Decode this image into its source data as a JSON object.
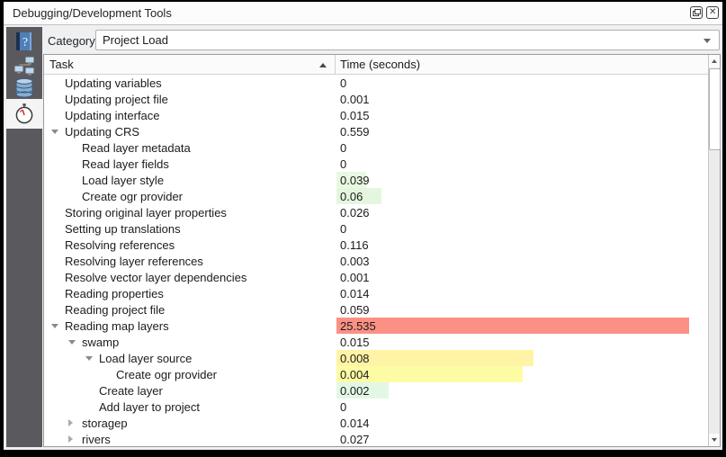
{
  "window": {
    "title": "Debugging/Development Tools",
    "buttons": {
      "float": "float-icon",
      "close": "close-icon"
    }
  },
  "sidebar": {
    "items": [
      {
        "id": "help",
        "icon": "help-book-icon",
        "selected": false
      },
      {
        "id": "network-logger",
        "icon": "network-icon",
        "selected": false
      },
      {
        "id": "query-logger",
        "icon": "database-icon",
        "selected": false
      },
      {
        "id": "profiler",
        "icon": "stopwatch-icon",
        "selected": true
      }
    ]
  },
  "toolbar": {
    "category_label": "Category",
    "category_value": "Project Load"
  },
  "table": {
    "columns": [
      {
        "label": "Task",
        "sort": "ascending"
      },
      {
        "label": "Time (seconds)"
      }
    ],
    "rows": [
      {
        "label": "Updating variables",
        "value": "0",
        "level": 1,
        "expand": "none"
      },
      {
        "label": "Updating project file",
        "value": "0.001",
        "level": 1,
        "expand": "none"
      },
      {
        "label": "Updating interface",
        "value": "0.015",
        "level": 1,
        "expand": "none"
      },
      {
        "label": "Updating CRS",
        "value": "0.559",
        "level": 1,
        "expand": "expanded"
      },
      {
        "label": "Read layer metadata",
        "value": "0",
        "level": 2,
        "expand": "none"
      },
      {
        "label": "Read layer fields",
        "value": "0",
        "level": 2,
        "expand": "none"
      },
      {
        "label": "Load layer style",
        "value": "0.039",
        "level": 2,
        "expand": "none",
        "bar": {
          "color": "#e8f8e2",
          "fraction": 0.08
        }
      },
      {
        "label": "Create ogr provider",
        "value": "0.06",
        "level": 2,
        "expand": "none",
        "bar": {
          "color": "#e4f7de",
          "fraction": 0.12
        }
      },
      {
        "label": "Storing original layer properties",
        "value": "0.026",
        "level": 1,
        "expand": "none"
      },
      {
        "label": "Setting up translations",
        "value": "0",
        "level": 1,
        "expand": "none"
      },
      {
        "label": "Resolving references",
        "value": "0.116",
        "level": 1,
        "expand": "none"
      },
      {
        "label": "Resolving layer references",
        "value": "0.003",
        "level": 1,
        "expand": "none"
      },
      {
        "label": "Resolve vector layer dependencies",
        "value": "0.001",
        "level": 1,
        "expand": "none"
      },
      {
        "label": "Reading properties",
        "value": "0.014",
        "level": 1,
        "expand": "none"
      },
      {
        "label": "Reading project file",
        "value": "0.059",
        "level": 1,
        "expand": "none"
      },
      {
        "label": "Reading map layers",
        "value": "25.535",
        "level": 1,
        "expand": "expanded",
        "bar": {
          "color": "#fb9184",
          "fraction": 0.95
        }
      },
      {
        "label": "swamp",
        "value": "0.015",
        "level": 2,
        "expand": "expanded"
      },
      {
        "label": "Load layer source",
        "value": "0.008",
        "level": 3,
        "expand": "expanded",
        "bar": {
          "color": "#fff3a6",
          "fraction": 0.53
        }
      },
      {
        "label": "Create ogr provider",
        "value": "0.004",
        "level": 4,
        "expand": "none",
        "bar": {
          "color": "#fdfca5",
          "fraction": 0.5
        }
      },
      {
        "label": "Create layer",
        "value": "0.002",
        "level": 3,
        "expand": "none",
        "bar": {
          "color": "#e3f8e4",
          "fraction": 0.14
        }
      },
      {
        "label": "Add layer to project",
        "value": "0",
        "level": 3,
        "expand": "none"
      },
      {
        "label": "storagep",
        "value": "0.014",
        "level": 2,
        "expand": "collapsed"
      },
      {
        "label": "rivers",
        "value": "0.027",
        "level": 2,
        "expand": "collapsed"
      }
    ]
  },
  "colors": {
    "bar_red": "#fb9184",
    "bar_yellow": "#fff3a6",
    "bar_green": "#e4f7de",
    "sidebar_bg": "#5a5a5e",
    "panel_bg": "#eff0f1"
  }
}
